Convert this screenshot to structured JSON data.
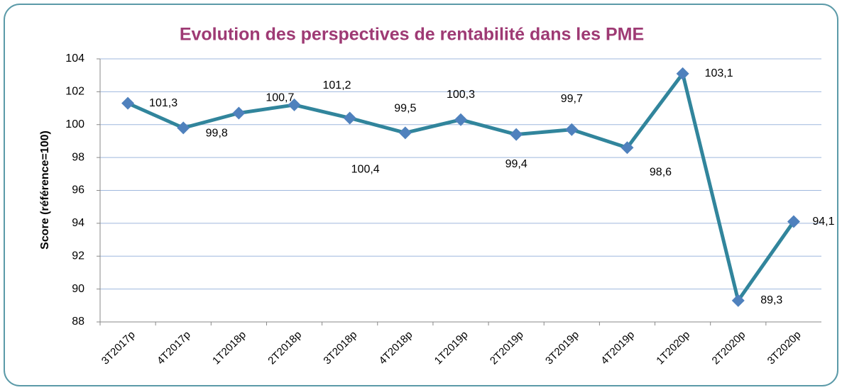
{
  "chart_data": {
    "type": "line",
    "title": "Evolution des perspectives de rentabilité dans les PME",
    "ylabel": "Score (référence=100)",
    "categories": [
      "3T2017p",
      "4T2017p",
      "1T2018p",
      "2T2018p",
      "3T2018p",
      "4T2018p",
      "1T2019p",
      "2T2019p",
      "3T2019p",
      "4T2019p",
      "1T2020p",
      "2T2020p",
      "3T2020p"
    ],
    "series": [
      {
        "name": "Score",
        "color": "#31859c",
        "marker_color": "#4f81bd",
        "values": [
          101.3,
          99.8,
          100.7,
          101.2,
          100.4,
          99.5,
          100.3,
          99.4,
          99.7,
          98.6,
          103.1,
          89.3,
          94.1
        ],
        "value_labels": [
          "101,3",
          "99,8",
          "100,7",
          "101,2",
          "100,4",
          "99,5",
          "100,3",
          "99,4",
          "99,7",
          "98,6",
          "103,1",
          "89,3",
          "94,1"
        ]
      }
    ],
    "ylim": [
      88,
      104
    ],
    "yticks": [
      88,
      90,
      92,
      94,
      96,
      98,
      100,
      102,
      104
    ],
    "grid": true
  }
}
